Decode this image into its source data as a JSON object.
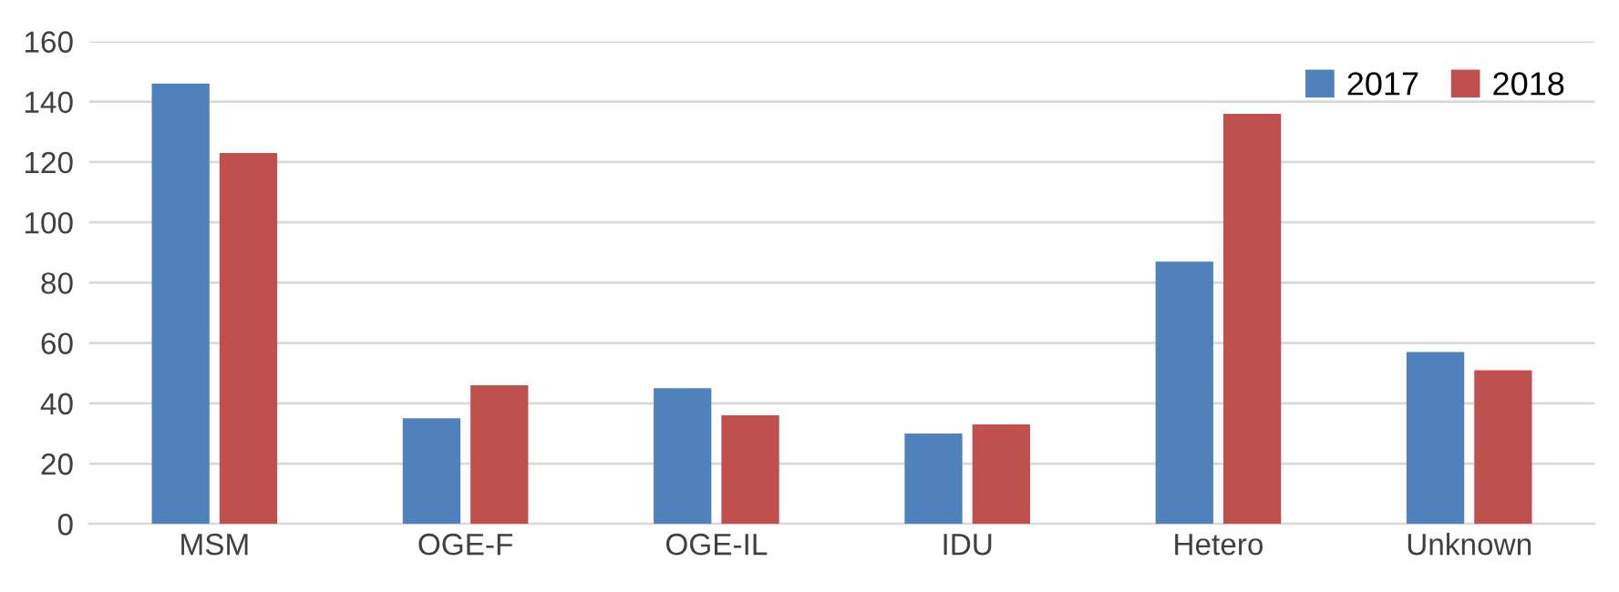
{
  "chart_data": {
    "type": "bar",
    "categories": [
      "MSM",
      "OGE-F",
      "OGE-IL",
      "IDU",
      "Hetero",
      "Unknown"
    ],
    "series": [
      {
        "name": "2017",
        "color": "#4f81bd",
        "values": [
          146,
          35,
          45,
          30,
          87,
          57
        ]
      },
      {
        "name": "2018",
        "color": "#c0504d",
        "values": [
          123,
          46,
          36,
          33,
          136,
          51
        ]
      }
    ],
    "ylim": [
      0,
      160
    ],
    "yticks": [
      0,
      20,
      40,
      60,
      80,
      100,
      120,
      140,
      160
    ],
    "grid": "y",
    "legend": "top right"
  }
}
